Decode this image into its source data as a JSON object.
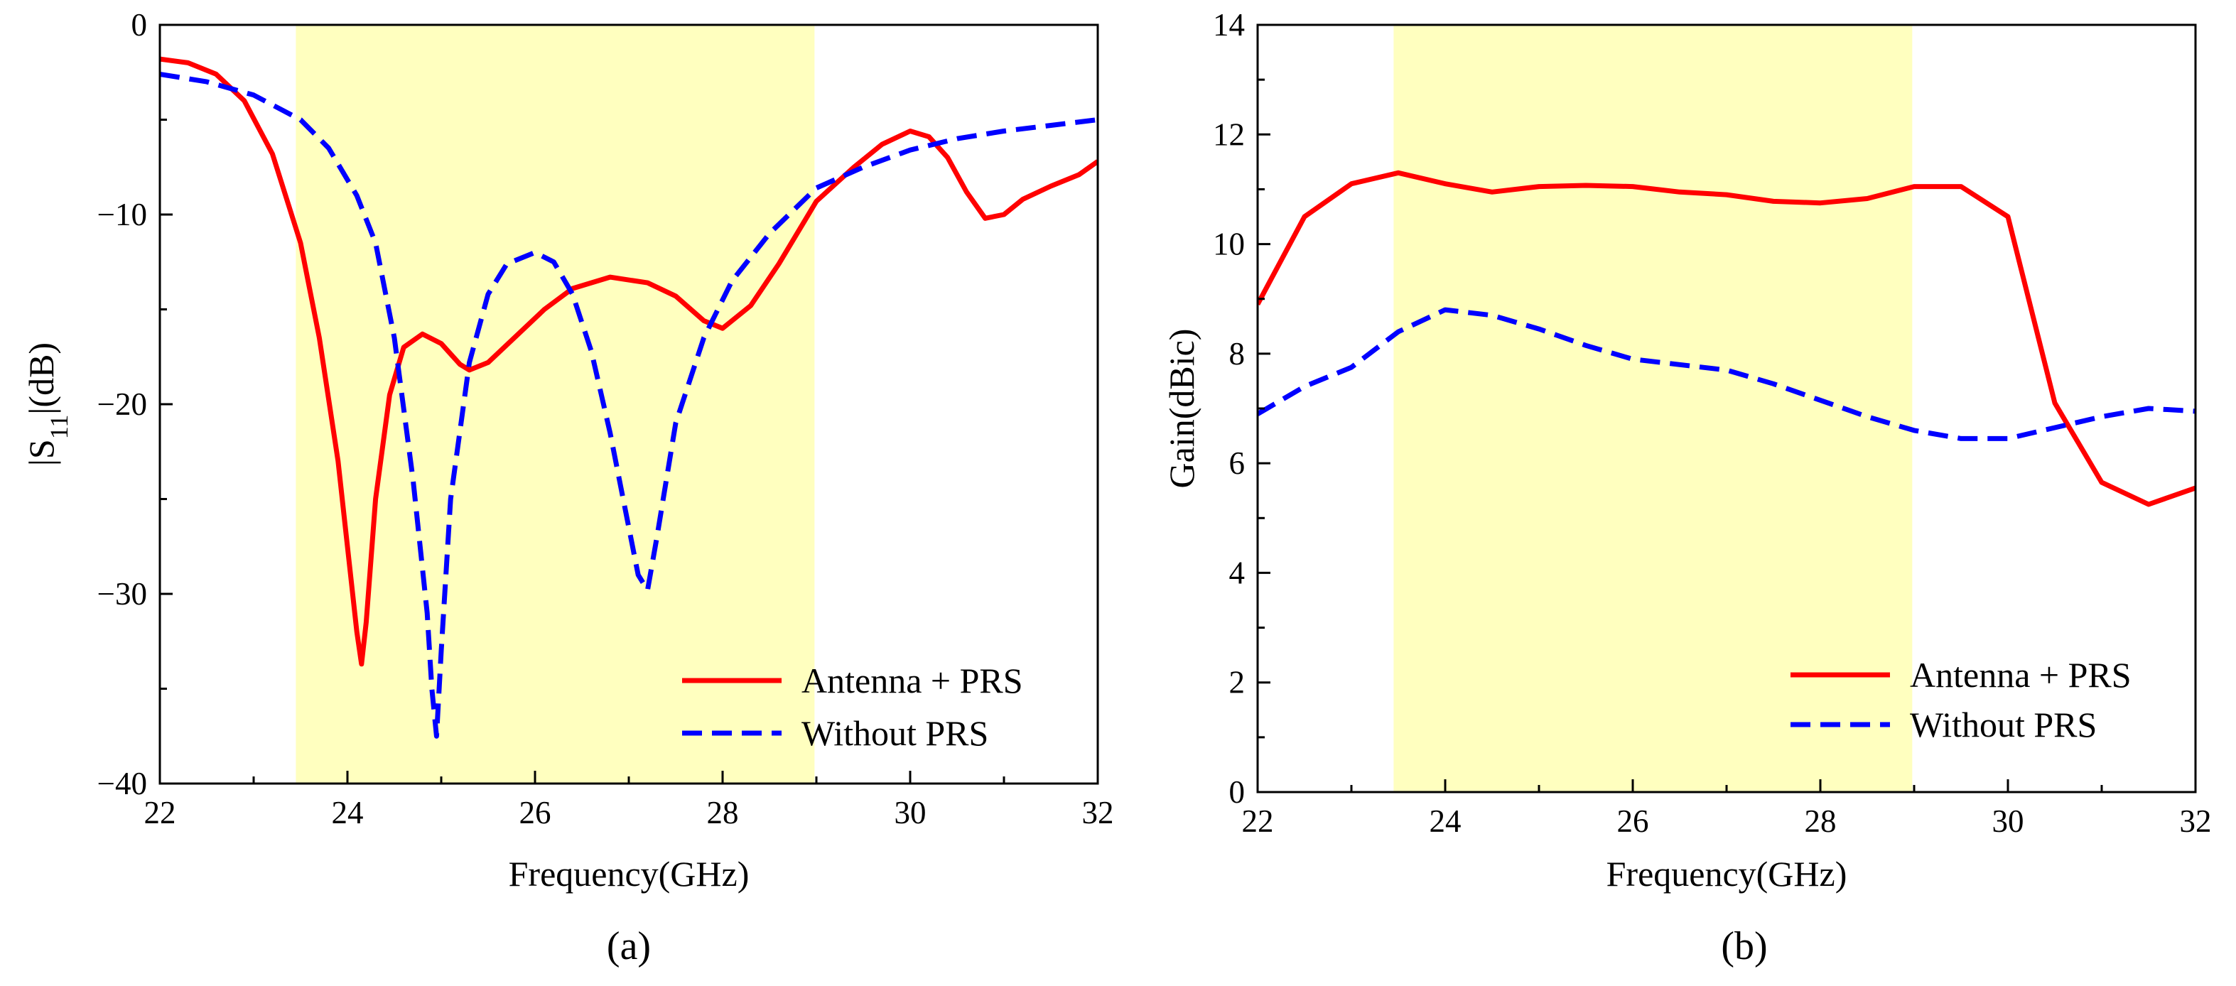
{
  "chart_data": [
    {
      "type": "line",
      "caption": "(a)",
      "xlabel": "Frequency(GHz)",
      "ylabel_prefix": "|S",
      "ylabel_sub": "11",
      "ylabel_suffix": "|(dB)",
      "xlim": [
        22,
        32
      ],
      "ylim": [
        -40,
        0
      ],
      "xticks": [
        22,
        24,
        26,
        28,
        30,
        32
      ],
      "yticks": [
        0,
        -10,
        -20,
        -30,
        -40
      ],
      "ytick_labels": [
        "0",
        "−10",
        "−20",
        "−30",
        "−40"
      ],
      "highlight_band": [
        23.45,
        28.98
      ],
      "legend": {
        "position": "bottom-right"
      },
      "series": [
        {
          "name": "Antenna + PRS",
          "color": "#ff0000",
          "style": "solid",
          "x": [
            22.0,
            22.3,
            22.6,
            22.9,
            23.2,
            23.5,
            23.7,
            23.9,
            24.0,
            24.1,
            24.15,
            24.2,
            24.3,
            24.45,
            24.6,
            24.8,
            25.0,
            25.2,
            25.3,
            25.5,
            25.8,
            26.1,
            26.4,
            26.8,
            27.2,
            27.5,
            27.8,
            28.0,
            28.3,
            28.6,
            29.0,
            29.4,
            29.7,
            30.0,
            30.2,
            30.4,
            30.6,
            30.8,
            31.0,
            31.2,
            31.5,
            31.8,
            32.0
          ],
          "y": [
            -1.8,
            -2.0,
            -2.6,
            -4.0,
            -6.8,
            -11.5,
            -16.5,
            -23.0,
            -27.5,
            -32.0,
            -33.7,
            -31.5,
            -25.0,
            -19.5,
            -17.0,
            -16.3,
            -16.8,
            -17.9,
            -18.2,
            -17.8,
            -16.4,
            -15.0,
            -13.9,
            -13.3,
            -13.6,
            -14.3,
            -15.6,
            -16.0,
            -14.8,
            -12.6,
            -9.3,
            -7.5,
            -6.3,
            -5.6,
            -5.9,
            -7.0,
            -8.8,
            -10.2,
            -10.0,
            -9.2,
            -8.5,
            -7.9,
            -7.2
          ]
        },
        {
          "name": "Without PRS",
          "color": "#0000ff",
          "style": "dashed",
          "x": [
            22.0,
            22.5,
            23.0,
            23.5,
            23.8,
            24.1,
            24.3,
            24.5,
            24.7,
            24.85,
            24.9,
            24.95,
            25.0,
            25.1,
            25.3,
            25.5,
            25.7,
            26.0,
            26.2,
            26.4,
            26.6,
            26.8,
            27.0,
            27.1,
            27.2,
            27.3,
            27.5,
            27.8,
            28.1,
            28.5,
            29.0,
            29.5,
            30.0,
            30.5,
            31.0,
            31.5,
            32.0
          ],
          "y": [
            -2.6,
            -3.0,
            -3.7,
            -5.0,
            -6.5,
            -9.0,
            -11.5,
            -16.5,
            -24.0,
            -31.0,
            -35.0,
            -37.5,
            -33.0,
            -25.0,
            -17.8,
            -14.2,
            -12.6,
            -12.0,
            -12.5,
            -14.2,
            -17.2,
            -21.5,
            -26.5,
            -29.0,
            -29.8,
            -27.0,
            -21.0,
            -16.5,
            -13.5,
            -11.0,
            -8.6,
            -7.5,
            -6.6,
            -6.0,
            -5.6,
            -5.3,
            -5.0
          ]
        }
      ]
    },
    {
      "type": "line",
      "caption": "(b)",
      "xlabel": "Frequency(GHz)",
      "ylabel": "Gain(dBic)",
      "xlim": [
        22,
        32
      ],
      "ylim": [
        0,
        14
      ],
      "xticks": [
        22,
        24,
        26,
        28,
        30,
        32
      ],
      "yticks": [
        0,
        2,
        4,
        6,
        8,
        10,
        12,
        14
      ],
      "ytick_labels": [
        "0",
        "2",
        "4",
        "6",
        "8",
        "10",
        "12",
        "14"
      ],
      "highlight_band": [
        23.45,
        28.98
      ],
      "legend": {
        "position": "bottom-right"
      },
      "series": [
        {
          "name": "Antenna + PRS",
          "color": "#ff0000",
          "style": "solid",
          "x": [
            22.0,
            22.5,
            23.0,
            23.5,
            24.0,
            24.5,
            25.0,
            25.5,
            26.0,
            26.5,
            27.0,
            27.5,
            28.0,
            28.5,
            29.0,
            29.5,
            30.0,
            30.5,
            31.0,
            31.5,
            32.0
          ],
          "y": [
            8.9,
            10.5,
            11.1,
            11.3,
            11.1,
            10.95,
            11.05,
            11.07,
            11.05,
            10.95,
            10.9,
            10.78,
            10.75,
            10.83,
            11.05,
            11.05,
            10.5,
            7.1,
            5.65,
            5.25,
            5.55
          ]
        },
        {
          "name": "Without PRS",
          "color": "#0000ff",
          "style": "dashed",
          "x": [
            22.0,
            22.5,
            23.0,
            23.5,
            24.0,
            24.5,
            25.0,
            25.5,
            26.0,
            26.5,
            27.0,
            27.5,
            28.0,
            28.5,
            29.0,
            29.5,
            30.0,
            30.5,
            31.0,
            31.5,
            32.0
          ],
          "y": [
            6.9,
            7.4,
            7.75,
            8.4,
            8.8,
            8.7,
            8.45,
            8.15,
            7.9,
            7.8,
            7.7,
            7.45,
            7.15,
            6.85,
            6.6,
            6.45,
            6.45,
            6.65,
            6.85,
            7.0,
            6.95
          ]
        }
      ]
    }
  ]
}
